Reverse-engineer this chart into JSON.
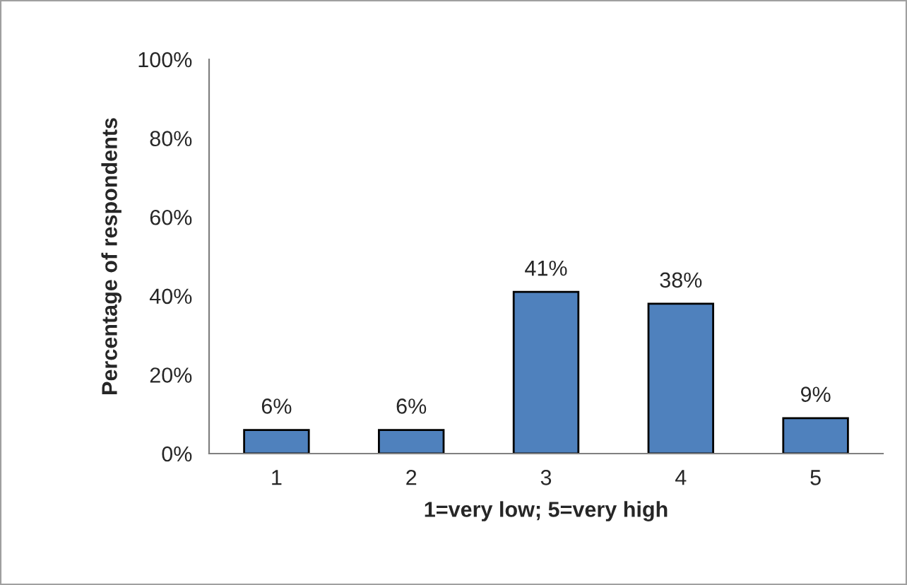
{
  "chart_data": {
    "type": "bar",
    "ylabel": "Percentage of respondents",
    "xlabel": "1=very low; 5=very high",
    "categories": [
      "1",
      "2",
      "3",
      "4",
      "5"
    ],
    "values": [
      6,
      6,
      41,
      38,
      9
    ],
    "value_labels": [
      "6%",
      "6%",
      "41%",
      "38%",
      "9%"
    ],
    "color": "#4f81bd",
    "ylim": [
      0,
      100
    ],
    "yticks": [
      {
        "value": 0,
        "label": "0%"
      },
      {
        "value": 20,
        "label": "20%"
      },
      {
        "value": 40,
        "label": "40%"
      },
      {
        "value": 60,
        "label": "60%"
      },
      {
        "value": 80,
        "label": "80%"
      },
      {
        "value": 100,
        "label": "100%"
      }
    ],
    "grid": false,
    "legend": false
  }
}
